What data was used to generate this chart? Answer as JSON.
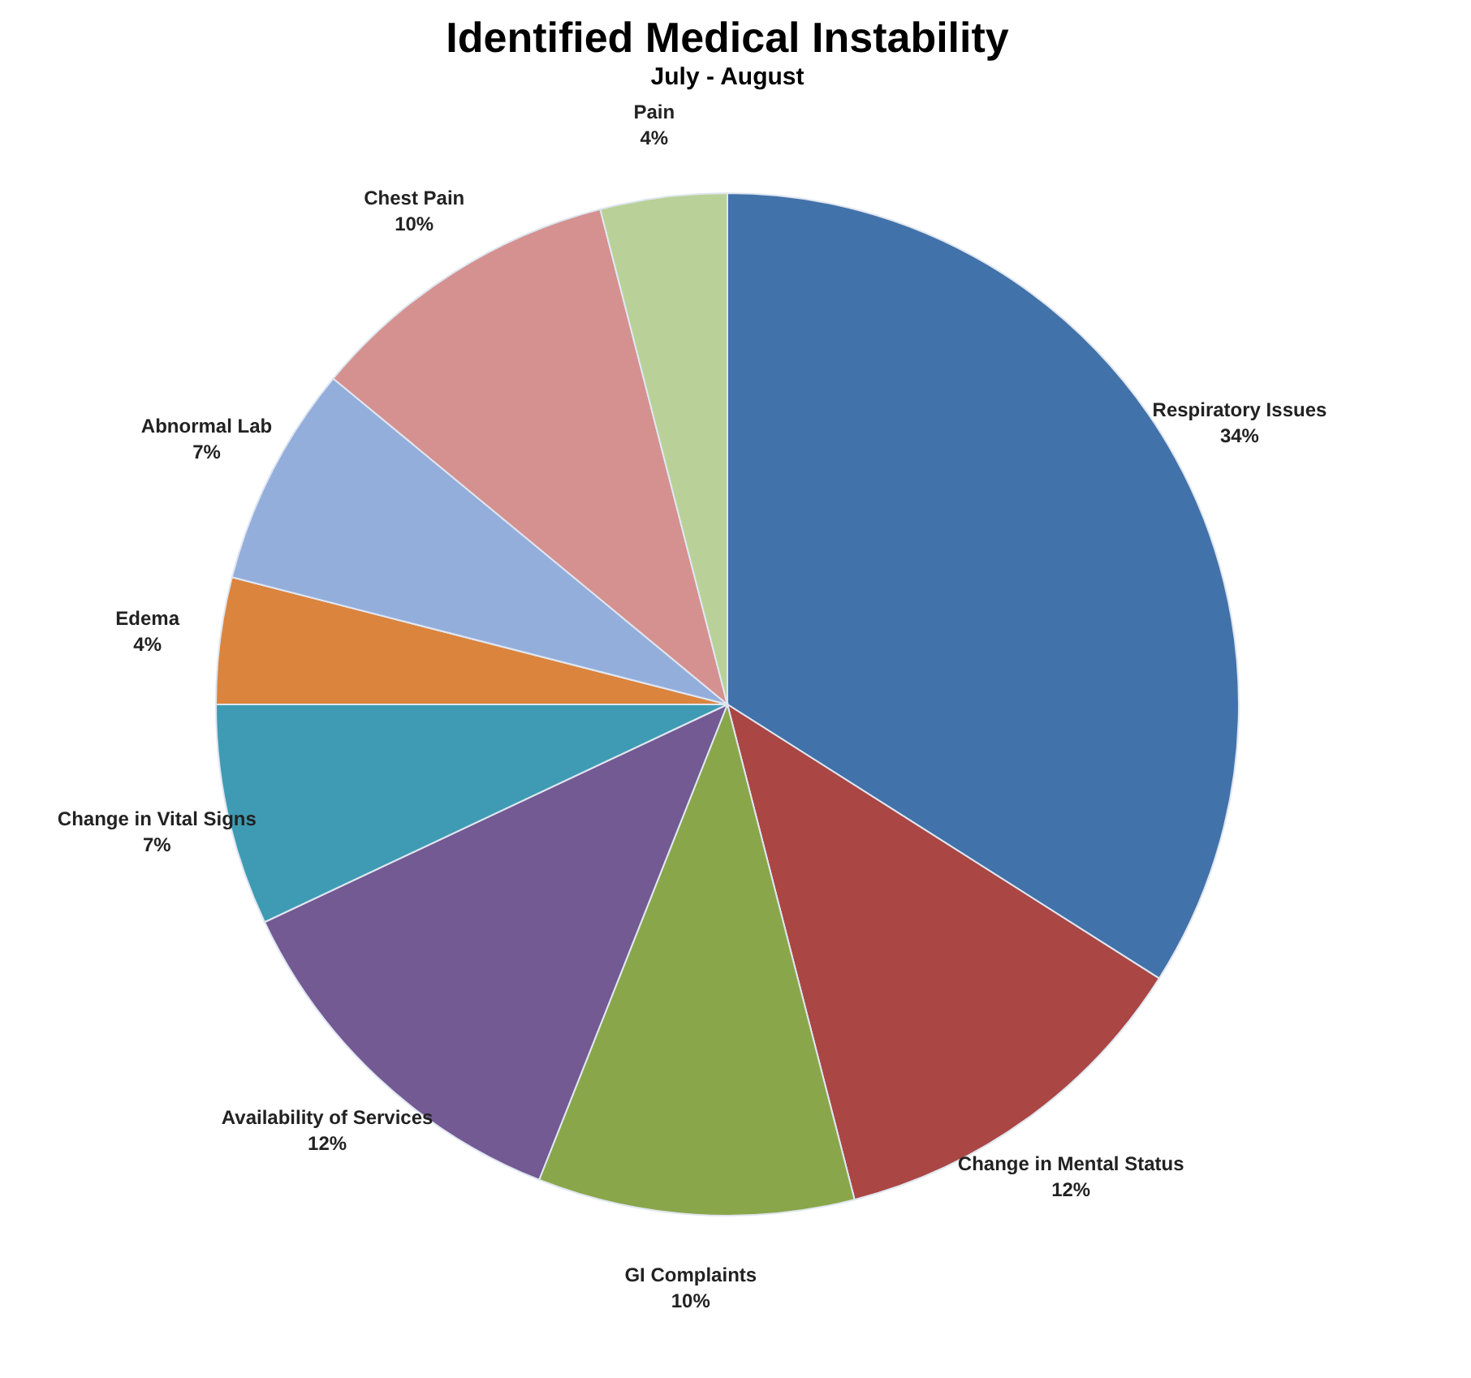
{
  "chart_data": {
    "type": "pie",
    "title": "Identified Medical Instability",
    "subtitle": "July - August",
    "categories": [
      "Respiratory Issues",
      "Change in Mental Status",
      "GI Complaints",
      "Availability of Services",
      "Change in Vital Signs",
      "Edema",
      "Abnormal Lab",
      "Chest Pain",
      "Pain"
    ],
    "values": [
      34,
      12,
      10,
      12,
      7,
      4,
      7,
      10,
      4
    ],
    "value_labels": [
      "34%",
      "12%",
      "10%",
      "12%",
      "7%",
      "4%",
      "7%",
      "10%",
      "4%"
    ],
    "colors": [
      "#4272aa",
      "#aa4644",
      "#8aa64a",
      "#735a93",
      "#3e9bb3",
      "#db843d",
      "#94aedc",
      "#d49190",
      "#b9d198"
    ],
    "legend": false
  }
}
